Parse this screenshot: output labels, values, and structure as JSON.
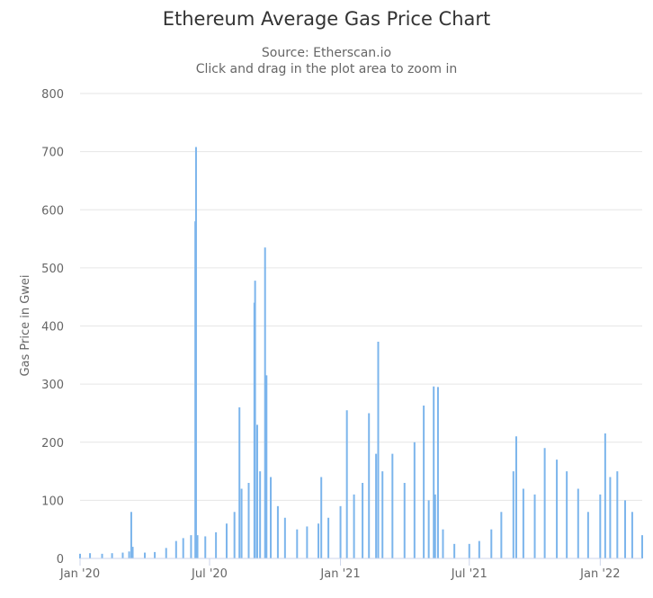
{
  "chart_data": {
    "type": "area",
    "title": "Ethereum Average Gas Price Chart",
    "subtitle_source": "Source: Etherscan.io",
    "subtitle_hint": "Click and drag in the plot area to zoom in",
    "xlabel": "",
    "ylabel": "Gas Price in Gwei",
    "ylim": [
      0,
      800
    ],
    "yticks": [
      "0",
      "100",
      "200",
      "300",
      "400",
      "500",
      "600",
      "700",
      "800"
    ],
    "xlim": [
      "2020-01-01",
      "2022-03-01"
    ],
    "xticks": [
      {
        "label": "Jan '20",
        "date": "2020-01-01"
      },
      {
        "label": "Jul '20",
        "date": "2020-07-01"
      },
      {
        "label": "Jan '21",
        "date": "2021-01-01"
      },
      {
        "label": "Jul '21",
        "date": "2021-07-01"
      },
      {
        "label": "Jan '22",
        "date": "2022-01-01"
      }
    ],
    "grid": true,
    "legend": "none",
    "color": "#7cb5ec",
    "series": [
      {
        "values_note_unused": "",
        "points": [
          [
            "2020-01-01",
            8
          ],
          [
            "2020-01-15",
            9
          ],
          [
            "2020-02-01",
            8
          ],
          [
            "2020-02-15",
            9
          ],
          [
            "2020-03-01",
            10
          ],
          [
            "2020-03-10",
            12
          ],
          [
            "2020-03-13",
            80
          ],
          [
            "2020-03-15",
            20
          ],
          [
            "2020-04-01",
            10
          ],
          [
            "2020-04-15",
            11
          ],
          [
            "2020-05-01",
            18
          ],
          [
            "2020-05-15",
            30
          ],
          [
            "2020-05-25",
            35
          ],
          [
            "2020-06-05",
            40
          ],
          [
            "2020-06-11",
            580
          ],
          [
            "2020-06-12",
            708
          ],
          [
            "2020-06-14",
            40
          ],
          [
            "2020-06-25",
            38
          ],
          [
            "2020-07-10",
            45
          ],
          [
            "2020-07-25",
            60
          ],
          [
            "2020-08-05",
            80
          ],
          [
            "2020-08-12",
            260
          ],
          [
            "2020-08-15",
            120
          ],
          [
            "2020-08-25",
            130
          ],
          [
            "2020-09-02",
            440
          ],
          [
            "2020-09-03",
            478
          ],
          [
            "2020-09-06",
            230
          ],
          [
            "2020-09-10",
            150
          ],
          [
            "2020-09-17",
            535
          ],
          [
            "2020-09-19",
            315
          ],
          [
            "2020-09-25",
            140
          ],
          [
            "2020-10-05",
            90
          ],
          [
            "2020-10-15",
            70
          ],
          [
            "2020-11-01",
            50
          ],
          [
            "2020-11-15",
            55
          ],
          [
            "2020-12-01",
            60
          ],
          [
            "2020-12-05",
            140
          ],
          [
            "2020-12-15",
            70
          ],
          [
            "2021-01-01",
            90
          ],
          [
            "2021-01-10",
            255
          ],
          [
            "2021-01-20",
            110
          ],
          [
            "2021-02-01",
            130
          ],
          [
            "2021-02-10",
            250
          ],
          [
            "2021-02-20",
            180
          ],
          [
            "2021-02-23",
            373
          ],
          [
            "2021-03-01",
            150
          ],
          [
            "2021-03-15",
            180
          ],
          [
            "2021-04-01",
            130
          ],
          [
            "2021-04-15",
            200
          ],
          [
            "2021-04-28",
            263
          ],
          [
            "2021-05-05",
            100
          ],
          [
            "2021-05-12",
            296
          ],
          [
            "2021-05-14",
            110
          ],
          [
            "2021-05-18",
            295
          ],
          [
            "2021-05-25",
            50
          ],
          [
            "2021-06-10",
            25
          ],
          [
            "2021-07-01",
            25
          ],
          [
            "2021-07-15",
            30
          ],
          [
            "2021-08-01",
            50
          ],
          [
            "2021-08-15",
            80
          ],
          [
            "2021-09-01",
            150
          ],
          [
            "2021-09-05",
            210
          ],
          [
            "2021-09-15",
            120
          ],
          [
            "2021-10-01",
            110
          ],
          [
            "2021-10-15",
            190
          ],
          [
            "2021-11-01",
            170
          ],
          [
            "2021-11-15",
            150
          ],
          [
            "2021-12-01",
            120
          ],
          [
            "2021-12-15",
            80
          ],
          [
            "2022-01-01",
            110
          ],
          [
            "2022-01-08",
            215
          ],
          [
            "2022-01-15",
            140
          ],
          [
            "2022-01-25",
            150
          ],
          [
            "2022-02-05",
            100
          ],
          [
            "2022-02-15",
            80
          ],
          [
            "2022-03-01",
            40
          ]
        ]
      }
    ]
  }
}
